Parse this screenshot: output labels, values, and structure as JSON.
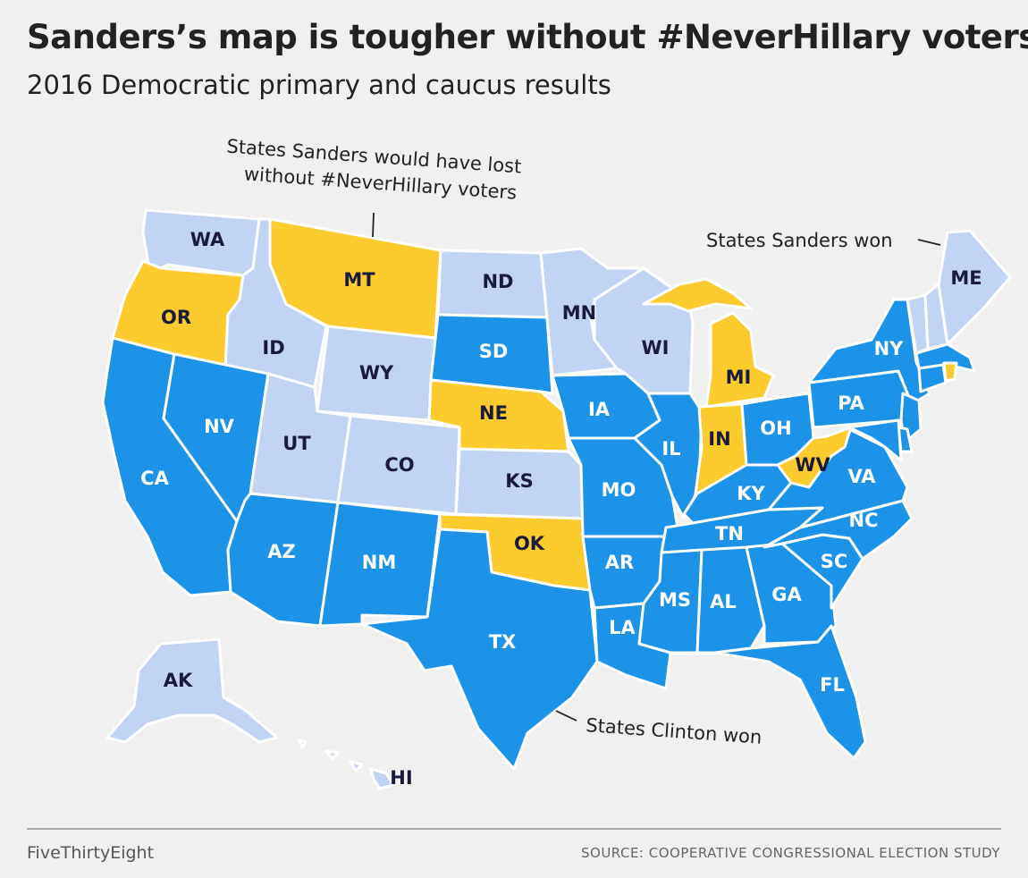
{
  "title": "Sanders’s map is tougher without #NeverHillary voters",
  "subtitle": "2016 Democratic primary and caucus results",
  "colors": {
    "sanders_won": "#c2d4f4",
    "sanders_lost_without_neverhillary": "#fccb2d",
    "clinton_won": "#1c92e8",
    "label_dark": "#1a1a3a",
    "label_light": "#ffffff"
  },
  "annotations": {
    "neverhillary_line1": "States Sanders would have lost",
    "neverhillary_line2": "without #NeverHillary voters",
    "sanders_won": "States Sanders won",
    "clinton_won": "States Clinton won"
  },
  "states": {
    "WA": {
      "label": "WA",
      "result": "sanders_won"
    },
    "OR": {
      "label": "OR",
      "result": "sanders_lost_without_neverhillary"
    },
    "CA": {
      "label": "CA",
      "result": "clinton_won"
    },
    "ID": {
      "label": "ID",
      "result": "sanders_won"
    },
    "NV": {
      "label": "NV",
      "result": "clinton_won"
    },
    "MT": {
      "label": "MT",
      "result": "sanders_lost_without_neverhillary"
    },
    "WY": {
      "label": "WY",
      "result": "sanders_won"
    },
    "UT": {
      "label": "UT",
      "result": "sanders_won"
    },
    "AZ": {
      "label": "AZ",
      "result": "clinton_won"
    },
    "CO": {
      "label": "CO",
      "result": "sanders_won"
    },
    "NM": {
      "label": "NM",
      "result": "clinton_won"
    },
    "ND": {
      "label": "ND",
      "result": "sanders_won"
    },
    "SD": {
      "label": "SD",
      "result": "clinton_won"
    },
    "NE": {
      "label": "NE",
      "result": "sanders_lost_without_neverhillary"
    },
    "KS": {
      "label": "KS",
      "result": "sanders_won"
    },
    "OK": {
      "label": "OK",
      "result": "sanders_lost_without_neverhillary"
    },
    "TX": {
      "label": "TX",
      "result": "clinton_won"
    },
    "MN": {
      "label": "MN",
      "result": "sanders_won"
    },
    "IA": {
      "label": "IA",
      "result": "clinton_won"
    },
    "MO": {
      "label": "MO",
      "result": "clinton_won"
    },
    "AR": {
      "label": "AR",
      "result": "clinton_won"
    },
    "LA": {
      "label": "LA",
      "result": "clinton_won"
    },
    "WI": {
      "label": "WI",
      "result": "sanders_won"
    },
    "IL": {
      "label": "IL",
      "result": "clinton_won"
    },
    "MI": {
      "label": "MI",
      "result": "sanders_lost_without_neverhillary"
    },
    "IN": {
      "label": "IN",
      "result": "sanders_lost_without_neverhillary"
    },
    "OH": {
      "label": "OH",
      "result": "clinton_won"
    },
    "KY": {
      "label": "KY",
      "result": "clinton_won"
    },
    "TN": {
      "label": "TN",
      "result": "clinton_won"
    },
    "MS": {
      "label": "MS",
      "result": "clinton_won"
    },
    "AL": {
      "label": "AL",
      "result": "clinton_won"
    },
    "GA": {
      "label": "GA",
      "result": "clinton_won"
    },
    "FL": {
      "label": "FL",
      "result": "clinton_won"
    },
    "SC": {
      "label": "SC",
      "result": "clinton_won"
    },
    "NC": {
      "label": "NC",
      "result": "clinton_won"
    },
    "VA": {
      "label": "VA",
      "result": "clinton_won"
    },
    "WV": {
      "label": "WV",
      "result": "sanders_lost_without_neverhillary"
    },
    "PA": {
      "label": "PA",
      "result": "clinton_won"
    },
    "NY": {
      "label": "NY",
      "result": "clinton_won"
    },
    "ME": {
      "label": "ME",
      "result": "sanders_won"
    },
    "VT": {
      "label": "",
      "result": "sanders_won"
    },
    "NH": {
      "label": "",
      "result": "sanders_won"
    },
    "MA": {
      "label": "",
      "result": "clinton_won"
    },
    "RI": {
      "label": "",
      "result": "sanders_lost_without_neverhillary"
    },
    "CT": {
      "label": "",
      "result": "clinton_won"
    },
    "NJ": {
      "label": "",
      "result": "clinton_won"
    },
    "DE": {
      "label": "",
      "result": "clinton_won"
    },
    "MD": {
      "label": "",
      "result": "clinton_won"
    },
    "AK": {
      "label": "AK",
      "result": "sanders_won"
    },
    "HI": {
      "label": "HI",
      "result": "sanders_won"
    }
  },
  "footer": {
    "brand": "FiveThirtyEight",
    "source": "SOURCE: COOPERATIVE CONGRESSIONAL ELECTION STUDY"
  }
}
